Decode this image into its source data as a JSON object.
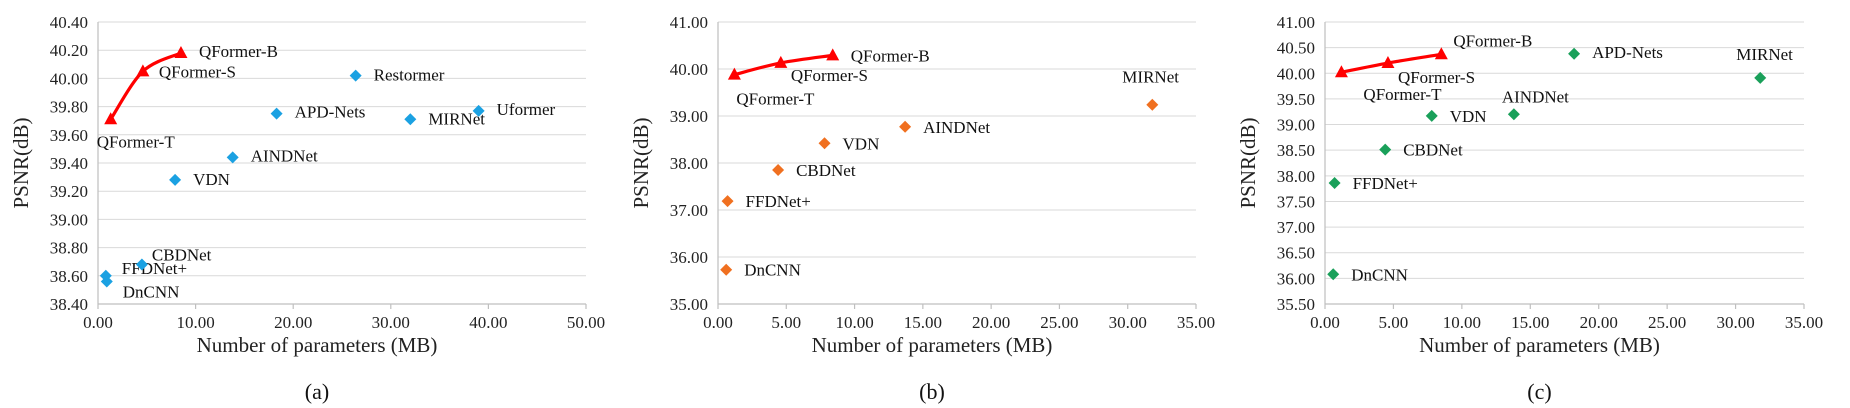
{
  "chart_data": [
    {
      "type": "scatter",
      "panel_label": "(a)",
      "xlabel": "Number of parameters (MB)",
      "ylabel": "PSNR(dB)",
      "xlim": [
        0,
        50
      ],
      "ylim": [
        38.4,
        40.4
      ],
      "xticks": [
        "0.00",
        "10.00",
        "20.00",
        "30.00",
        "40.00",
        "50.00"
      ],
      "yticks": [
        "38.40",
        "38.60",
        "38.80",
        "39.00",
        "39.20",
        "39.40",
        "39.60",
        "39.80",
        "40.00",
        "40.20",
        "40.40"
      ],
      "grid": "horizontal",
      "marker_color": "#1ba1e2",
      "points": [
        {
          "label": "DnCNN",
          "x": 0.9,
          "y": 38.56
        },
        {
          "label": "FFDNet+",
          "x": 0.8,
          "y": 38.6
        },
        {
          "label": "CBDNet",
          "x": 4.5,
          "y": 38.68
        },
        {
          "label": "VDN",
          "x": 7.9,
          "y": 39.28
        },
        {
          "label": "AINDNet",
          "x": 13.8,
          "y": 39.44
        },
        {
          "label": "APD-Nets",
          "x": 18.3,
          "y": 39.75
        },
        {
          "label": "Restormer",
          "x": 26.4,
          "y": 40.02
        },
        {
          "label": "MIRNet",
          "x": 32.0,
          "y": 39.71
        },
        {
          "label": "Uformer",
          "x": 39.0,
          "y": 39.77
        }
      ],
      "qformer_color": "#ff0000",
      "qformer": [
        {
          "label": "QFormer-T",
          "x": 1.3,
          "y": 39.71
        },
        {
          "label": "QFormer-S",
          "x": 4.6,
          "y": 40.05
        },
        {
          "label": "QFormer-B",
          "x": 8.5,
          "y": 40.18
        }
      ]
    },
    {
      "type": "scatter",
      "panel_label": "(b)",
      "xlabel": "Number of parameters (MB)",
      "ylabel": "PSNR(dB)",
      "xlim": [
        0,
        35
      ],
      "ylim": [
        35,
        41
      ],
      "xticks": [
        "0.00",
        "5.00",
        "10.00",
        "15.00",
        "20.00",
        "25.00",
        "30.00",
        "35.00"
      ],
      "yticks": [
        "35.00",
        "36.00",
        "37.00",
        "38.00",
        "39.00",
        "40.00",
        "41.00"
      ],
      "grid": "horizontal",
      "marker_color": "#f07020",
      "points": [
        {
          "label": "DnCNN",
          "x": 0.6,
          "y": 35.73
        },
        {
          "label": "FFDNet+",
          "x": 0.7,
          "y": 37.19
        },
        {
          "label": "CBDNet",
          "x": 4.4,
          "y": 37.85
        },
        {
          "label": "VDN",
          "x": 7.8,
          "y": 38.42
        },
        {
          "label": "AINDNet",
          "x": 13.7,
          "y": 38.77
        },
        {
          "label": "MIRNet",
          "x": 31.8,
          "y": 39.24
        }
      ],
      "qformer_color": "#ff0000",
      "qformer": [
        {
          "label": "QFormer-T",
          "x": 1.2,
          "y": 39.88
        },
        {
          "label": "QFormer-S",
          "x": 4.6,
          "y": 40.13
        },
        {
          "label": "QFormer-B",
          "x": 8.4,
          "y": 40.29
        }
      ]
    },
    {
      "type": "scatter",
      "panel_label": "(c)",
      "xlabel": "Number of parameters (MB)",
      "ylabel": "PSNR(dB)",
      "xlim": [
        0,
        35
      ],
      "ylim": [
        35.5,
        41
      ],
      "xticks": [
        "0.00",
        "5.00",
        "10.00",
        "15.00",
        "20.00",
        "25.00",
        "30.00",
        "35.00"
      ],
      "yticks": [
        "35.50",
        "36.00",
        "36.50",
        "37.00",
        "37.50",
        "38.00",
        "38.50",
        "39.00",
        "39.50",
        "40.00",
        "40.50",
        "41.00"
      ],
      "grid": "horizontal",
      "marker_color": "#1aa05a",
      "points": [
        {
          "label": "DnCNN",
          "x": 0.6,
          "y": 36.08
        },
        {
          "label": "FFDNet+",
          "x": 0.7,
          "y": 37.86
        },
        {
          "label": "CBDNet",
          "x": 4.4,
          "y": 38.51
        },
        {
          "label": "VDN",
          "x": 7.8,
          "y": 39.17
        },
        {
          "label": "AINDNet",
          "x": 13.8,
          "y": 39.2
        },
        {
          "label": "APD-Nets",
          "x": 18.2,
          "y": 40.38
        },
        {
          "label": "MIRNet",
          "x": 31.8,
          "y": 39.91
        }
      ],
      "qformer_color": "#ff0000",
      "qformer": [
        {
          "label": "QFormer-T",
          "x": 1.2,
          "y": 40.02
        },
        {
          "label": "QFormer-S",
          "x": 4.6,
          "y": 40.2
        },
        {
          "label": "QFormer-B",
          "x": 8.5,
          "y": 40.37
        }
      ]
    }
  ]
}
